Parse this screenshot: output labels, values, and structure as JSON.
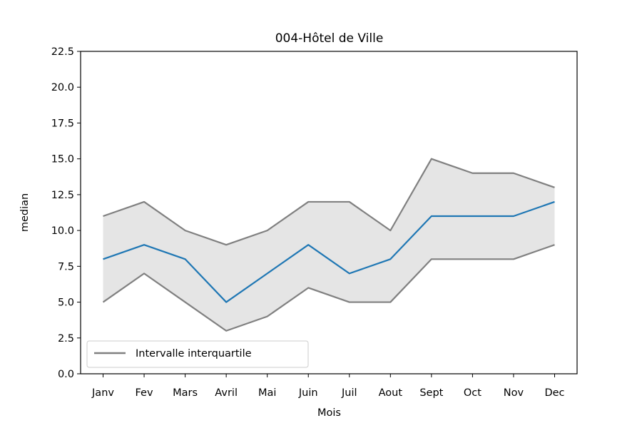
{
  "chart_data": {
    "type": "line",
    "title": "004-Hôtel de Ville",
    "xlabel": "Mois",
    "ylabel": "median",
    "categories": [
      "Janv",
      "Fev",
      "Mars",
      "Avril",
      "Mai",
      "Juin",
      "Juil",
      "Aout",
      "Sept",
      "Oct",
      "Nov",
      "Dec"
    ],
    "ylim": [
      0,
      22.5
    ],
    "yticks": [
      0.0,
      2.5,
      5.0,
      7.5,
      10.0,
      12.5,
      15.0,
      17.5,
      20.0,
      22.5
    ],
    "ytick_labels": [
      "0.0",
      "2.5",
      "5.0",
      "7.5",
      "10.0",
      "12.5",
      "15.0",
      "17.5",
      "20.0",
      "22.5"
    ],
    "grid": false,
    "legend_position": "lower-left",
    "series": [
      {
        "values": [
          8,
          9,
          8,
          5,
          7,
          9,
          7,
          8,
          11,
          11,
          11,
          12
        ],
        "color": "#1f77b4"
      },
      {
        "name": "Intervalle interquartile",
        "role": "upper",
        "values": [
          11,
          12,
          10,
          9,
          10,
          12,
          12,
          10,
          15,
          14,
          14,
          13
        ],
        "color": "#808080"
      },
      {
        "role": "lower",
        "values": [
          5,
          7,
          5,
          3,
          4,
          6,
          5,
          5,
          8,
          8,
          8,
          9
        ],
        "color": "#808080"
      }
    ],
    "band_fill_color": "#e5e5e5"
  }
}
